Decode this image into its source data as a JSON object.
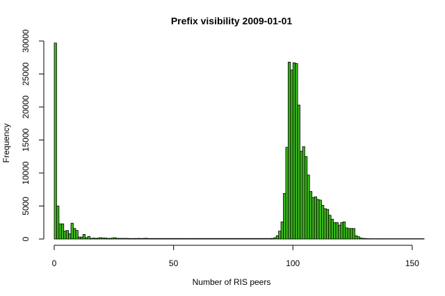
{
  "chart_data": {
    "type": "bar",
    "title": "Prefix visibility 2009-01-01",
    "xlabel": "Number of RIS peers",
    "ylabel": "Frequency",
    "bar_color": "#3cb81c",
    "bin_width": 1,
    "x_range": [
      0,
      155
    ],
    "xlim": [
      0,
      155
    ],
    "ylim": [
      0,
      30000
    ],
    "x_ticks": [
      "0",
      "50",
      "100",
      "150"
    ],
    "y_ticks": [
      "0",
      "5000",
      "10000",
      "15000",
      "20000",
      "25000",
      "30000"
    ],
    "values": [
      29700,
      5000,
      2300,
      2300,
      1200,
      1300,
      800,
      2400,
      1600,
      1300,
      300,
      300,
      700,
      200,
      400,
      100,
      150,
      100,
      150,
      200,
      150,
      150,
      100,
      100,
      150,
      200,
      100,
      100,
      100,
      100,
      100,
      80,
      80,
      80,
      80,
      100,
      80,
      100,
      120,
      80,
      80,
      80,
      80,
      80,
      80,
      80,
      80,
      80,
      80,
      80,
      80,
      80,
      80,
      80,
      80,
      80,
      80,
      80,
      80,
      80,
      80,
      80,
      80,
      80,
      80,
      80,
      80,
      80,
      80,
      80,
      80,
      80,
      80,
      80,
      80,
      80,
      80,
      80,
      80,
      80,
      80,
      80,
      80,
      80,
      80,
      80,
      80,
      80,
      80,
      80,
      80,
      100,
      200,
      500,
      1200,
      2600,
      6900,
      13900,
      26800,
      25600,
      26700,
      26600,
      20300,
      13300,
      14000,
      12500,
      9700,
      7200,
      6300,
      6400,
      6000,
      5900,
      5100,
      4600,
      4500,
      3600,
      3000,
      2500,
      2500,
      2100,
      2500,
      2600,
      1700,
      1600,
      1600,
      1600,
      500,
      350,
      150,
      100,
      80,
      60,
      50,
      50,
      50,
      50,
      50,
      50,
      50,
      50,
      50,
      50,
      50,
      50,
      50,
      50,
      50,
      50,
      50,
      50,
      50,
      50,
      50,
      50,
      50
    ]
  }
}
